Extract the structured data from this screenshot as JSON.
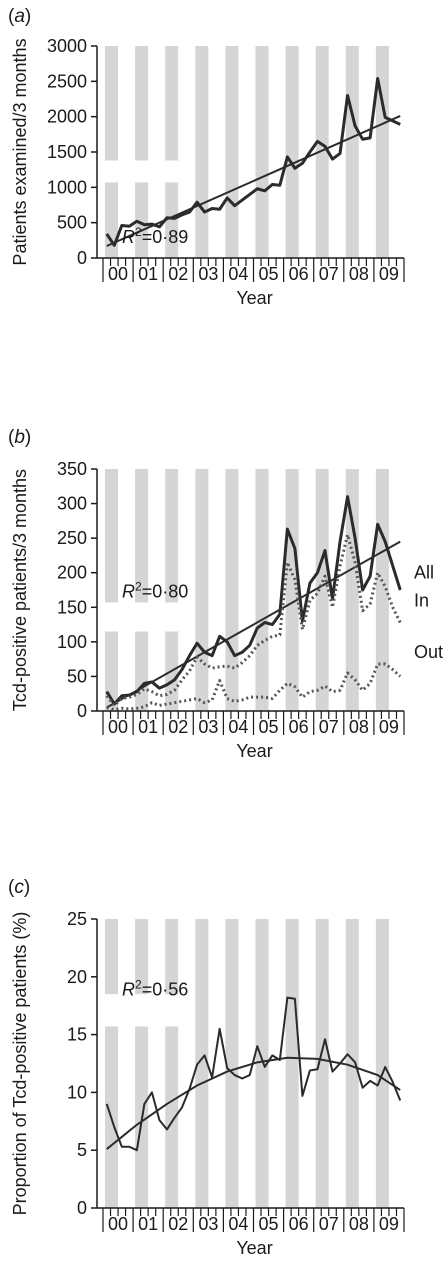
{
  "colors": {
    "band": "#d5d5d5",
    "axis": "#1a1a1a",
    "series_main": "#2b2b2b",
    "series_dotted": "#555555",
    "trend": "#2b2b2b"
  },
  "chart_data": [
    {
      "type": "line",
      "panel_label": "a",
      "xlabel": "Year",
      "ylabel": "Patients examined/3 months",
      "ylim": [
        0,
        3000
      ],
      "yticks": [
        0,
        500,
        1000,
        1500,
        2000,
        2500,
        3000
      ],
      "year_labels": [
        "00",
        "01",
        "02",
        "03",
        "04",
        "05",
        "06",
        "07",
        "08",
        "09"
      ],
      "x_unit": "quarter index (0 = first quarter of 2000)",
      "r2_text": "=0·89",
      "series": [
        {
          "style": "solid",
          "values": [
            340,
            180,
            460,
            450,
            520,
            470,
            480,
            440,
            570,
            560,
            610,
            650,
            790,
            650,
            700,
            690,
            850,
            740,
            820,
            900,
            980,
            950,
            1040,
            1030,
            1430,
            1270,
            1340,
            1500,
            1650,
            1580,
            1400,
            1480,
            2300,
            1870,
            1680,
            1700,
            2540,
            1990,
            1940,
            1890
          ]
        }
      ],
      "trend": {
        "kind": "linear",
        "x": [
          0,
          39
        ],
        "y": [
          170,
          2010
        ]
      }
    },
    {
      "type": "line",
      "panel_label": "b",
      "xlabel": "Year",
      "ylabel": "Tcd-positive patients/3 months",
      "ylim": [
        0,
        350
      ],
      "yticks": [
        0,
        50,
        100,
        150,
        200,
        250,
        300,
        350
      ],
      "year_labels": [
        "00",
        "01",
        "02",
        "03",
        "04",
        "05",
        "06",
        "07",
        "08",
        "09"
      ],
      "x_unit": "quarter index (0 = first quarter of 2000)",
      "r2_text": "=0·80",
      "series": [
        {
          "name": "All",
          "style": "solid",
          "values": [
            28,
            10,
            22,
            23,
            28,
            40,
            42,
            33,
            38,
            45,
            60,
            80,
            98,
            85,
            80,
            108,
            100,
            80,
            85,
            95,
            120,
            128,
            125,
            140,
            263,
            235,
            130,
            185,
            200,
            232,
            162,
            245,
            310,
            250,
            175,
            195,
            270,
            245,
            210,
            175
          ]
        },
        {
          "name": "In",
          "style": "dotted",
          "values": [
            22,
            8,
            18,
            20,
            24,
            32,
            28,
            22,
            24,
            30,
            45,
            58,
            78,
            68,
            62,
            64,
            65,
            62,
            70,
            80,
            95,
            102,
            108,
            110,
            215,
            190,
            118,
            160,
            170,
            195,
            150,
            210,
            255,
            215,
            145,
            155,
            200,
            180,
            150,
            128
          ]
        },
        {
          "name": "Out",
          "style": "dotted",
          "values": [
            5,
            2,
            4,
            3,
            4,
            6,
            12,
            8,
            10,
            12,
            14,
            16,
            18,
            12,
            16,
            44,
            18,
            14,
            16,
            20,
            20,
            20,
            18,
            30,
            40,
            35,
            20,
            28,
            30,
            36,
            28,
            30,
            55,
            45,
            30,
            40,
            68,
            68,
            60,
            50
          ]
        }
      ],
      "trend": {
        "kind": "linear",
        "x": [
          0,
          39
        ],
        "y": [
          5,
          245
        ]
      }
    },
    {
      "type": "line",
      "panel_label": "c",
      "xlabel": "Year",
      "ylabel": "Proportion of Tcd-positive patients (%)",
      "ylim": [
        0,
        25
      ],
      "yticks": [
        0,
        5,
        10,
        15,
        20,
        25
      ],
      "year_labels": [
        "00",
        "01",
        "02",
        "03",
        "04",
        "05",
        "06",
        "07",
        "08",
        "09"
      ],
      "x_unit": "quarter index (0 = first quarter of 2000)",
      "r2_text": "=0·56",
      "series": [
        {
          "style": "solid",
          "values": [
            9,
            7,
            5.3,
            5.3,
            5,
            9,
            10,
            7.6,
            6.8,
            7.8,
            8.7,
            10.3,
            12.4,
            13.2,
            11.3,
            15.5,
            12.1,
            11.5,
            11.2,
            11.5,
            14,
            12.2,
            13.2,
            12.8,
            18.2,
            18.1,
            9.7,
            11.9,
            12,
            14.6,
            11.8,
            12.5,
            13.3,
            12.6,
            10.4,
            11,
            10.6,
            12.2,
            10.9,
            9.3
          ]
        }
      ],
      "trend": {
        "kind": "quadratic",
        "x": [
          0,
          4,
          8,
          12,
          16,
          20,
          24,
          28,
          32,
          36,
          39
        ],
        "y": [
          5.1,
          7.2,
          9,
          10.6,
          11.8,
          12.6,
          13,
          12.9,
          12.4,
          11.5,
          10.2
        ]
      }
    }
  ]
}
